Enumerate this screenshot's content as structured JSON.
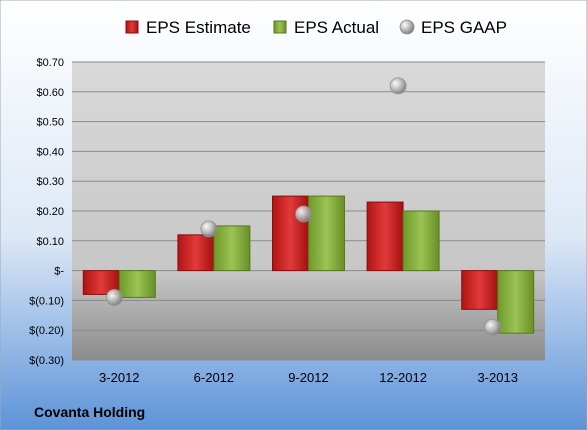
{
  "company": "Covanta Holding",
  "chart_data": {
    "type": "bar",
    "categories": [
      "3-2012",
      "6-2012",
      "9-2012",
      "12-2012",
      "3-2013"
    ],
    "series": [
      {
        "name": "EPS Estimate",
        "type": "bar",
        "color": "#cc1f1f",
        "values": [
          -0.08,
          0.12,
          0.25,
          0.23,
          -0.13
        ]
      },
      {
        "name": "EPS Actual",
        "type": "bar",
        "color": "#84b03a",
        "values": [
          -0.09,
          0.15,
          0.25,
          0.2,
          -0.21
        ]
      },
      {
        "name": "EPS GAAP",
        "type": "scatter",
        "color": "#a8a8a8",
        "values": [
          -0.09,
          0.14,
          0.19,
          0.62,
          -0.19
        ]
      }
    ],
    "ylim": [
      -0.3,
      0.7
    ],
    "yticks": [
      0.7,
      0.6,
      0.5,
      0.4,
      0.3,
      0.2,
      0.1,
      0.0,
      -0.1,
      -0.2,
      -0.3
    ],
    "ytick_labels": [
      "$0.70",
      "$0.60",
      "$0.50",
      "$0.40",
      "$0.30",
      "$0.20",
      "$0.10",
      "$-",
      "$(0.10)",
      "$(0.20)",
      "$(0.30)"
    ],
    "legend_position": "top",
    "grid": true
  }
}
